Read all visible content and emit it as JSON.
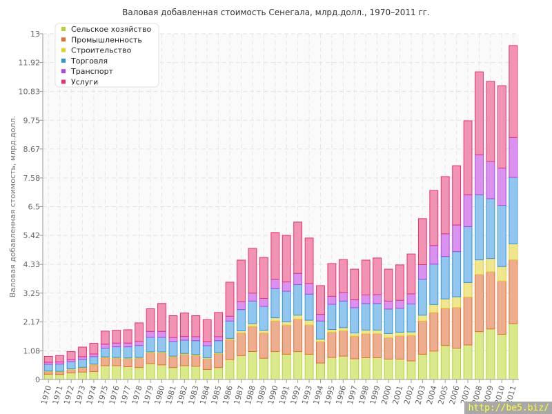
{
  "chart_data": {
    "type": "bar",
    "stacked": true,
    "title": "Валовая добавленная стоимость Сенегала, млрд.долл., 1970–2011 гг.",
    "xlabel": "",
    "ylabel": "Валовая добавленная стоимость, млрд.долл.",
    "ylim": [
      0,
      13
    ],
    "yticks": [
      "0",
      "1.08",
      "2.17",
      "3.25",
      "4.33",
      "5.42",
      "6.5",
      "7.58",
      "8.67",
      "9.75",
      "10.83",
      "11.92",
      "13"
    ],
    "grid": true,
    "legend_position": "top-left",
    "categories": [
      "1970",
      "1971",
      "1972",
      "1973",
      "1974",
      "1975",
      "1976",
      "1977",
      "1978",
      "1979",
      "1980",
      "1981",
      "1982",
      "1983",
      "1984",
      "1985",
      "1986",
      "1987",
      "1988",
      "1989",
      "1990",
      "1991",
      "1992",
      "1993",
      "1994",
      "1995",
      "1996",
      "1997",
      "1998",
      "1999",
      "2000",
      "2001",
      "2002",
      "2003",
      "2004",
      "2005",
      "2006",
      "2007",
      "2008",
      "2009",
      "2010",
      "2011"
    ],
    "series": [
      {
        "name": "Сельское хозяйство",
        "color": "#b8d430",
        "fill": "#dbe98d",
        "values": [
          0.2,
          0.19,
          0.25,
          0.28,
          0.3,
          0.52,
          0.52,
          0.48,
          0.45,
          0.6,
          0.55,
          0.45,
          0.52,
          0.5,
          0.38,
          0.45,
          0.75,
          0.9,
          1.05,
          0.8,
          1.05,
          0.95,
          1.05,
          0.95,
          0.62,
          0.83,
          0.88,
          0.78,
          0.82,
          0.82,
          0.77,
          0.77,
          0.7,
          0.95,
          1.07,
          1.28,
          1.18,
          1.3,
          1.8,
          1.9,
          1.7,
          2.1
        ]
      },
      {
        "name": "Промышленность",
        "color": "#e86a2c",
        "fill": "#edae90",
        "values": [
          0.1,
          0.1,
          0.12,
          0.15,
          0.25,
          0.3,
          0.28,
          0.3,
          0.35,
          0.4,
          0.45,
          0.4,
          0.42,
          0.4,
          0.4,
          0.52,
          0.75,
          0.85,
          0.95,
          0.95,
          1.15,
          1.1,
          1.22,
          1.1,
          0.8,
          0.95,
          0.95,
          0.85,
          0.9,
          0.9,
          0.8,
          0.87,
          0.95,
          1.25,
          1.45,
          1.4,
          1.53,
          1.8,
          2.15,
          2.15,
          2.0,
          2.4
        ]
      },
      {
        "name": "Строительство",
        "color": "#e2cf2a",
        "fill": "#efe68f",
        "values": [
          0.02,
          0.02,
          0.03,
          0.03,
          0.03,
          0.03,
          0.03,
          0.03,
          0.03,
          0.04,
          0.04,
          0.03,
          0.04,
          0.04,
          0.04,
          0.04,
          0.05,
          0.08,
          0.1,
          0.1,
          0.12,
          0.12,
          0.15,
          0.18,
          0.1,
          0.1,
          0.12,
          0.12,
          0.14,
          0.14,
          0.16,
          0.14,
          0.14,
          0.22,
          0.3,
          0.35,
          0.4,
          0.55,
          0.55,
          0.5,
          0.55,
          0.6
        ]
      },
      {
        "name": "Торговля",
        "color": "#2f95da",
        "fill": "#93c6ee",
        "values": [
          0.25,
          0.27,
          0.27,
          0.3,
          0.28,
          0.33,
          0.4,
          0.42,
          0.45,
          0.55,
          0.55,
          0.55,
          0.5,
          0.52,
          0.45,
          0.45,
          0.65,
          0.8,
          0.85,
          0.9,
          1.1,
          1.15,
          1.15,
          0.98,
          0.68,
          0.95,
          1.0,
          0.95,
          1.0,
          1.0,
          0.92,
          0.9,
          1.05,
          1.35,
          1.52,
          1.6,
          1.7,
          2.1,
          2.45,
          2.25,
          2.3,
          2.5
        ]
      },
      {
        "name": "Транспорт",
        "color": "#b143e0",
        "fill": "#d993ee",
        "values": [
          0.08,
          0.08,
          0.09,
          0.1,
          0.1,
          0.15,
          0.14,
          0.14,
          0.15,
          0.22,
          0.22,
          0.15,
          0.14,
          0.15,
          0.15,
          0.15,
          0.18,
          0.3,
          0.3,
          0.3,
          0.35,
          0.35,
          0.42,
          0.4,
          0.25,
          0.3,
          0.32,
          0.3,
          0.32,
          0.33,
          0.3,
          0.3,
          0.38,
          0.55,
          0.7,
          0.85,
          1.0,
          1.2,
          1.5,
          1.4,
          1.4,
          1.5
        ]
      },
      {
        "name": "Услуги",
        "color": "#e6306f",
        "fill": "#f093b5",
        "values": [
          0.22,
          0.24,
          0.29,
          0.36,
          0.4,
          0.49,
          0.48,
          0.5,
          0.7,
          0.85,
          1.05,
          0.82,
          0.88,
          0.79,
          0.83,
          0.91,
          1.28,
          1.56,
          1.68,
          1.54,
          1.76,
          1.75,
          1.93,
          1.71,
          1.08,
          1.23,
          1.24,
          1.15,
          1.31,
          1.38,
          1.2,
          1.33,
          1.5,
          1.73,
          2.07,
          2.15,
          2.23,
          2.78,
          3.12,
          3.01,
          3.1,
          3.46
        ]
      }
    ]
  },
  "watermark": "http://be5.biz/"
}
